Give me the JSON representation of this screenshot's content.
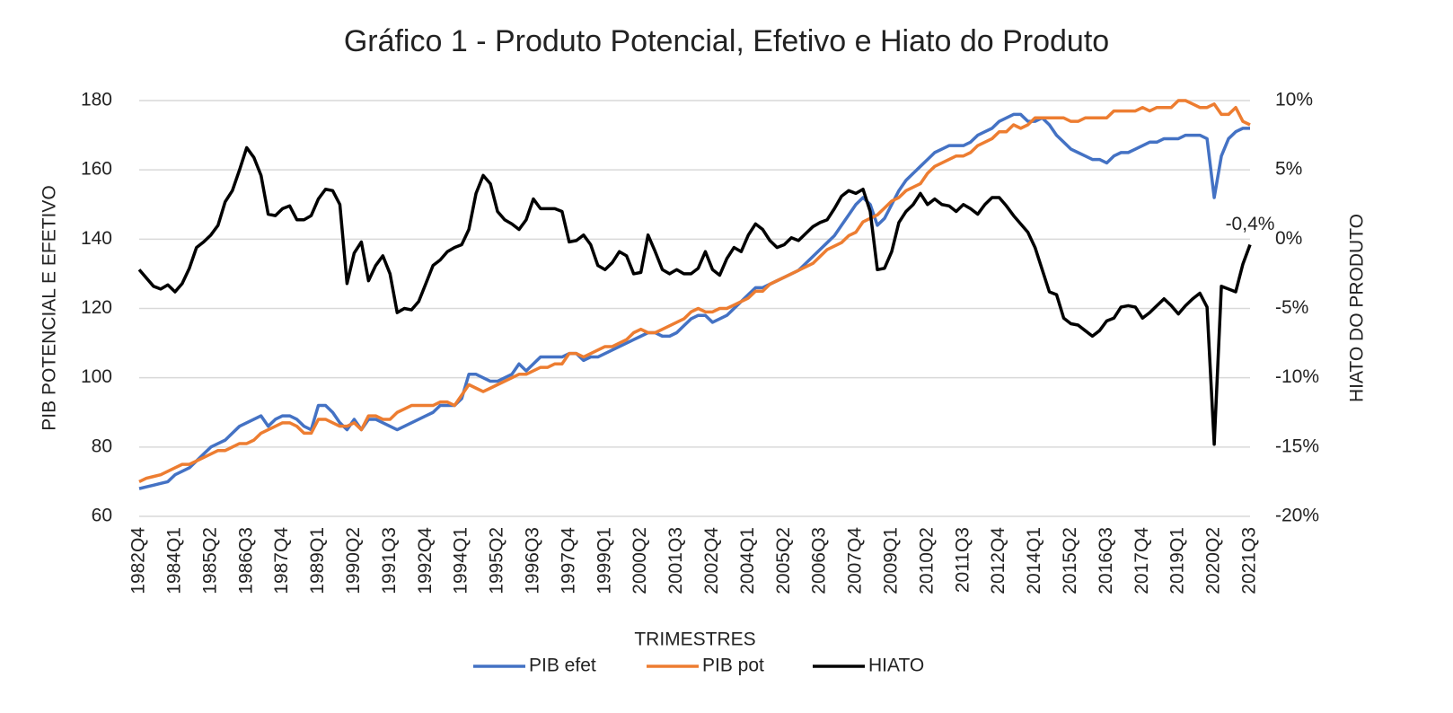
{
  "chart_data": {
    "type": "line",
    "title": "Gráfico 1 - Produto Potencial, Efetivo e Hiato do Produto",
    "x_label": "TRIMESTRES",
    "y_label": "PIB POTENCIAL E EFETIVO",
    "y2_label": "HIATO DO PRODUTO",
    "categories": [
      "1982Q4",
      null,
      null,
      null,
      null,
      "1984Q1",
      null,
      null,
      null,
      null,
      "1985Q2",
      null,
      null,
      null,
      null,
      "1986Q3",
      null,
      null,
      null,
      null,
      "1987Q4",
      null,
      null,
      null,
      null,
      "1989Q1",
      null,
      null,
      null,
      null,
      "1990Q2",
      null,
      null,
      null,
      null,
      "1991Q3",
      null,
      null,
      null,
      null,
      "1992Q4",
      null,
      null,
      null,
      null,
      "1994Q1",
      null,
      null,
      null,
      null,
      "1995Q2",
      null,
      null,
      null,
      null,
      "1996Q3",
      null,
      null,
      null,
      null,
      "1997Q4",
      null,
      null,
      null,
      null,
      "1999Q1",
      null,
      null,
      null,
      null,
      "2000Q2",
      null,
      null,
      null,
      null,
      "2001Q3",
      null,
      null,
      null,
      null,
      "2002Q4",
      null,
      null,
      null,
      null,
      "2004Q1",
      null,
      null,
      null,
      null,
      "2005Q2",
      null,
      null,
      null,
      null,
      "2006Q3",
      null,
      null,
      null,
      null,
      "2007Q4",
      null,
      null,
      null,
      null,
      "2009Q1",
      null,
      null,
      null,
      null,
      "2010Q2",
      null,
      null,
      null,
      null,
      "2011Q3",
      null,
      null,
      null,
      null,
      "2012Q4",
      null,
      null,
      null,
      null,
      "2014Q1",
      null,
      null,
      null,
      null,
      "2015Q2",
      null,
      null,
      null,
      null,
      "2016Q3",
      null,
      null,
      null,
      null,
      "2017Q4",
      null,
      null,
      null,
      null,
      "2019Q1",
      null,
      null,
      null,
      null,
      "2020Q2",
      null,
      null,
      null,
      null,
      "2021Q3"
    ],
    "series": [
      {
        "name": "PIB efet",
        "color": "#4472c4",
        "values": [
          68,
          68.5,
          69,
          69.5,
          70,
          72,
          73,
          74,
          76,
          78,
          80,
          81,
          82,
          84,
          86,
          87,
          88,
          89,
          86,
          88,
          89,
          89,
          88,
          86,
          85,
          92,
          92,
          90,
          87,
          85,
          88,
          85,
          88,
          88,
          87,
          86,
          85,
          86,
          87,
          88,
          89,
          90,
          92,
          92,
          92,
          94,
          101,
          101,
          100,
          99,
          99,
          100,
          101,
          104,
          102,
          104,
          106,
          106,
          106,
          106,
          107,
          107,
          105,
          106,
          106,
          107,
          108,
          109,
          110,
          111,
          112,
          113,
          113,
          112,
          112,
          113,
          115,
          117,
          118,
          118,
          116,
          117,
          118,
          120,
          122,
          124,
          126,
          126,
          127,
          128,
          129,
          130,
          131,
          133,
          135,
          137,
          139,
          141,
          144,
          147,
          150,
          152,
          150,
          144,
          146,
          150,
          154,
          157,
          159,
          161,
          163,
          165,
          166,
          167,
          167,
          167,
          168,
          170,
          171,
          172,
          174,
          175,
          176,
          176,
          174,
          174,
          175,
          173,
          170,
          168,
          166,
          165,
          164,
          163,
          163,
          162,
          164,
          165,
          165,
          166,
          167,
          168,
          168,
          169,
          169,
          169,
          170,
          170,
          170,
          169,
          152,
          164,
          169,
          171,
          172,
          172
        ]
      },
      {
        "name": "PIB pot",
        "color": "#ed7d31",
        "values": [
          70,
          71,
          71.5,
          72,
          73,
          74,
          75,
          75,
          76,
          77,
          78,
          79,
          79,
          80,
          81,
          81,
          82,
          84,
          85,
          86,
          87,
          87,
          86,
          84,
          84,
          88,
          88,
          87,
          86,
          86,
          87,
          85,
          89,
          89,
          88,
          88,
          90,
          91,
          92,
          92,
          92,
          92,
          93,
          93,
          92,
          95,
          98,
          97,
          96,
          97,
          98,
          99,
          100,
          101,
          101,
          102,
          103,
          103,
          104,
          104,
          107,
          107,
          106,
          107,
          108,
          109,
          109,
          110,
          111,
          113,
          114,
          113,
          113,
          114,
          115,
          116,
          117,
          119,
          120,
          119,
          119,
          120,
          120,
          121,
          122,
          123,
          125,
          125,
          127,
          128,
          129,
          130,
          131,
          132,
          133,
          135,
          137,
          138,
          139,
          141,
          142,
          145,
          146,
          147,
          149,
          151,
          152,
          154,
          155,
          156,
          159,
          161,
          162,
          163,
          164,
          164,
          165,
          167,
          168,
          169,
          171,
          171,
          173,
          172,
          173,
          175,
          175,
          175,
          175,
          175,
          174,
          174,
          175,
          175,
          175,
          175,
          177,
          177,
          177,
          177,
          178,
          177,
          178,
          178,
          178,
          180,
          180,
          179,
          178,
          178,
          179,
          176,
          176,
          178,
          174,
          173
        ]
      },
      {
        "name": "HIATO",
        "color": "#000000",
        "axis": "y2",
        "values": [
          -2.2,
          -2.8,
          -3.4,
          -3.6,
          -3.3,
          -3.8,
          -3.2,
          -2.1,
          -0.6,
          -0.2,
          0.3,
          1.0,
          2.7,
          3.5,
          5.0,
          6.6,
          5.9,
          4.6,
          1.8,
          1.7,
          2.2,
          2.4,
          1.4,
          1.4,
          1.7,
          2.9,
          3.6,
          3.5,
          2.5,
          -3.2,
          -1.0,
          -0.2,
          -3.0,
          -1.9,
          -1.2,
          -2.5,
          -5.3,
          -5.0,
          -5.1,
          -4.5,
          -3.2,
          -1.9,
          -1.5,
          -0.9,
          -0.6,
          -0.4,
          0.7,
          3.3,
          4.6,
          4.0,
          2.0,
          1.4,
          1.1,
          0.7,
          1.4,
          2.9,
          2.2,
          2.2,
          2.2,
          2.0,
          -0.2,
          -0.1,
          0.3,
          -0.4,
          -1.9,
          -2.2,
          -1.7,
          -0.9,
          -1.2,
          -2.5,
          -2.4,
          0.3,
          -0.9,
          -2.2,
          -2.5,
          -2.2,
          -2.5,
          -2.5,
          -2.1,
          -0.9,
          -2.2,
          -2.6,
          -1.4,
          -0.6,
          -0.9,
          0.3,
          1.1,
          0.7,
          -0.1,
          -0.6,
          -0.4,
          0.1,
          -0.1,
          0.4,
          0.9,
          1.2,
          1.4,
          2.2,
          3.1,
          3.5,
          3.3,
          3.6,
          2.0,
          -2.2,
          -2.1,
          -0.9,
          1.2,
          2.0,
          2.5,
          3.3,
          2.5,
          2.9,
          2.5,
          2.4,
          2.0,
          2.5,
          2.2,
          1.8,
          2.5,
          3.0,
          3.0,
          2.4,
          1.7,
          1.1,
          0.5,
          -0.6,
          -2.2,
          -3.8,
          -4.0,
          -5.7,
          -6.1,
          -6.2,
          -6.6,
          -7.0,
          -6.6,
          -5.9,
          -5.7,
          -4.9,
          -4.8,
          -4.9,
          -5.7,
          -5.3,
          -4.8,
          -4.3,
          -4.8,
          -5.4,
          -4.8,
          -4.3,
          -3.9,
          -4.9,
          -14.8,
          -3.4,
          -3.6,
          -3.8,
          -1.8,
          -0.4
        ],
        "value_labels": [
          null,
          null,
          null,
          null,
          null,
          null,
          null,
          null,
          null,
          null,
          null,
          null,
          null,
          null,
          null,
          null,
          null,
          null,
          null,
          null,
          null,
          null,
          null,
          null,
          null,
          null,
          null,
          null,
          null,
          null,
          null,
          null,
          null,
          null,
          null,
          null,
          null,
          null,
          null,
          null,
          null,
          null,
          null,
          null,
          null,
          null,
          null,
          null,
          null,
          null,
          null,
          null,
          null,
          null,
          null,
          null,
          null,
          null,
          null,
          null,
          null,
          null,
          null,
          null,
          null,
          null,
          null,
          null,
          null,
          null,
          null,
          null,
          null,
          null,
          null,
          null,
          null,
          null,
          null,
          null,
          null,
          null,
          null,
          null,
          null,
          null,
          null,
          null,
          null,
          null,
          null,
          null,
          null,
          null,
          null,
          null,
          null,
          null,
          null,
          null,
          null,
          null,
          null,
          null,
          null,
          null,
          null,
          null,
          null,
          null,
          null,
          null,
          null,
          null,
          null,
          null,
          null,
          null,
          null,
          null,
          null,
          null,
          null,
          null,
          null,
          null,
          null,
          null,
          null,
          null,
          null,
          null,
          null,
          null,
          null,
          null,
          null,
          null,
          null,
          null,
          null,
          null,
          null,
          null,
          null,
          null,
          null,
          null,
          null,
          null,
          null,
          null,
          null,
          null,
          null,
          "-0,4%"
        ]
      }
    ],
    "ylim": [
      60,
      180
    ],
    "yticks": [
      60,
      80,
      100,
      120,
      140,
      160,
      180
    ],
    "y2lim": [
      -20,
      10
    ],
    "y2ticks": [
      {
        "value": -20,
        "label": "-20%"
      },
      {
        "value": -15,
        "label": "-15%"
      },
      {
        "value": -10,
        "label": "-10%"
      },
      {
        "value": -5,
        "label": "-5%"
      },
      {
        "value": 0,
        "label": "0%"
      },
      {
        "value": 5,
        "label": "5%"
      },
      {
        "value": 10,
        "label": "10%"
      }
    ],
    "grid": true,
    "legend": "bottom"
  }
}
